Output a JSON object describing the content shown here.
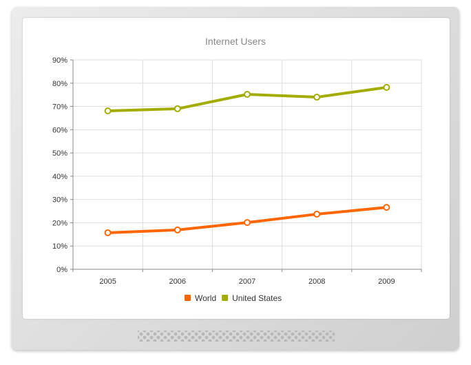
{
  "chart_data": {
    "type": "line",
    "title": "Internet Users",
    "xlabel": "",
    "ylabel": "",
    "categories": [
      "2005",
      "2006",
      "2007",
      "2008",
      "2009"
    ],
    "ylim": [
      0,
      90
    ],
    "yticks": [
      "0%",
      "10%",
      "20%",
      "30%",
      "40%",
      "50%",
      "60%",
      "70%",
      "80%",
      "90%"
    ],
    "grid": true,
    "legend_position": "bottom",
    "series": [
      {
        "name": "World",
        "color": "#ff6600",
        "values": [
          15.7,
          16.9,
          20.1,
          23.7,
          26.6
        ]
      },
      {
        "name": "United States",
        "color": "#a3ac00",
        "values": [
          68.1,
          69.0,
          75.2,
          74.0,
          78.2
        ]
      }
    ]
  }
}
